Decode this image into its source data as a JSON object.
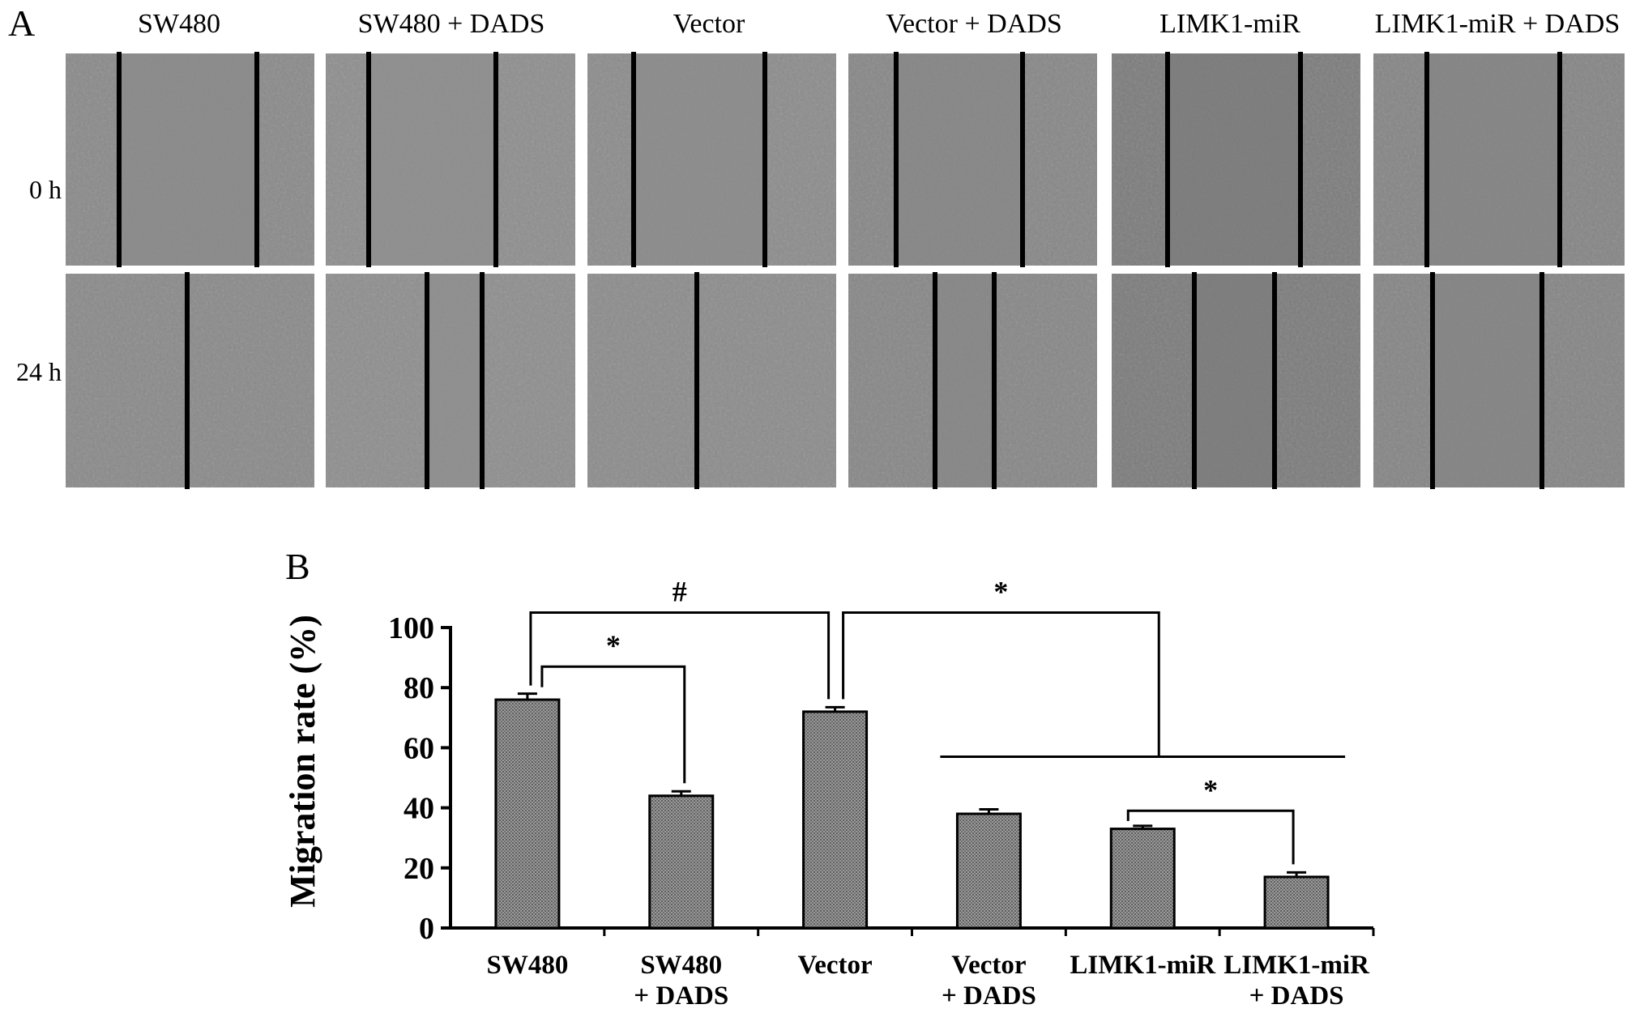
{
  "panel_a": {
    "letter": "A",
    "columns": [
      "SW480",
      "SW480 + DADS",
      "Vector",
      "Vector + DADS",
      "LIMK1-miR",
      "LIMK1-miR + DADS"
    ],
    "rows": [
      "0 h",
      "24 h"
    ],
    "micrograph_tones": [
      "#8a8a8a",
      "#8e8e8e",
      "#8c8c8c",
      "#878787",
      "#7c7c7c",
      "#858585"
    ],
    "scratch_line_color": "#000000"
  },
  "panel_b": {
    "letter": "B"
  },
  "chart_data": {
    "type": "bar",
    "categories": [
      [
        "SW480"
      ],
      [
        "SW480",
        "+ DADS"
      ],
      [
        "Vector"
      ],
      [
        "Vector",
        "+ DADS"
      ],
      [
        "LIMK1-miR"
      ],
      [
        "LIMK1-miR",
        "+ DADS"
      ]
    ],
    "values": [
      76,
      44,
      72,
      38,
      33,
      17
    ],
    "errors": [
      2,
      1.5,
      1.5,
      1.5,
      1,
      1.5
    ],
    "ylabel": "Migration rate (%)",
    "ylim": [
      0,
      100
    ],
    "yticks": [
      0,
      20,
      40,
      60,
      80,
      100
    ],
    "bar_color": "#808080",
    "significance": [
      {
        "from": 0,
        "to": 2,
        "symbol": "#"
      },
      {
        "from": 0,
        "to": 1,
        "symbol": "*"
      },
      {
        "from": 2,
        "to": [
          3,
          4,
          5
        ],
        "symbol": "*"
      },
      {
        "from": 4,
        "to": 5,
        "symbol": "*"
      }
    ]
  }
}
